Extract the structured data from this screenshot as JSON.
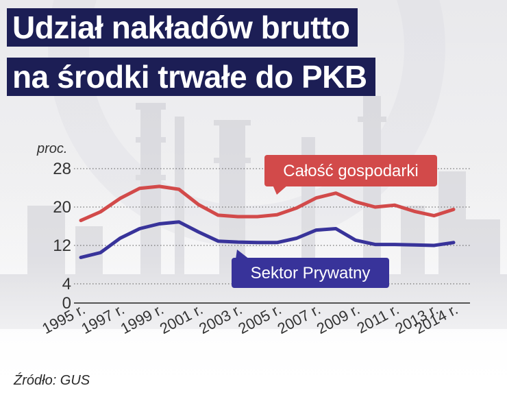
{
  "title": {
    "line1": "Udział nakładów brutto",
    "line2": "na środki trwałe do PKB"
  },
  "source": "Źródło: GUS",
  "colors": {
    "title_bg": "#1c1e55",
    "total": "#d24a4a",
    "private": "#38339a"
  },
  "chart_data": {
    "type": "line",
    "ylabel": "proc.",
    "yticks": [
      0,
      4,
      12,
      20,
      28
    ],
    "ylim": [
      0,
      28
    ],
    "grid": true,
    "x": [
      1995,
      1996,
      1997,
      1998,
      1999,
      2000,
      2001,
      2002,
      2003,
      2004,
      2005,
      2006,
      2007,
      2008,
      2009,
      2010,
      2011,
      2012,
      2013,
      2014
    ],
    "xtick_labels": [
      "1995 r.",
      "1997 r.",
      "1999 r.",
      "2001 r.",
      "2003 r.",
      "2005 r.",
      "2007 r.",
      "2009 r.",
      "2011 r.",
      "2013 r.",
      "2014 r."
    ],
    "xtick_years": [
      1995,
      1997,
      1999,
      2001,
      2003,
      2005,
      2007,
      2009,
      2011,
      2013,
      2014
    ],
    "series": [
      {
        "name": "Całość gospodarki",
        "values": [
          17.2,
          19.0,
          21.8,
          23.9,
          24.3,
          23.7,
          20.5,
          18.3,
          18.0,
          18.0,
          18.4,
          19.8,
          21.9,
          22.9,
          21.1,
          20.0,
          20.4,
          19.1,
          18.2,
          19.5
        ]
      },
      {
        "name": "Sektor Prywatny",
        "values": [
          9.5,
          10.5,
          13.5,
          15.5,
          16.5,
          16.9,
          14.8,
          12.9,
          12.7,
          12.6,
          12.6,
          13.5,
          15.2,
          15.5,
          13.1,
          12.2,
          12.2,
          12.1,
          12.0,
          12.6
        ]
      }
    ]
  }
}
